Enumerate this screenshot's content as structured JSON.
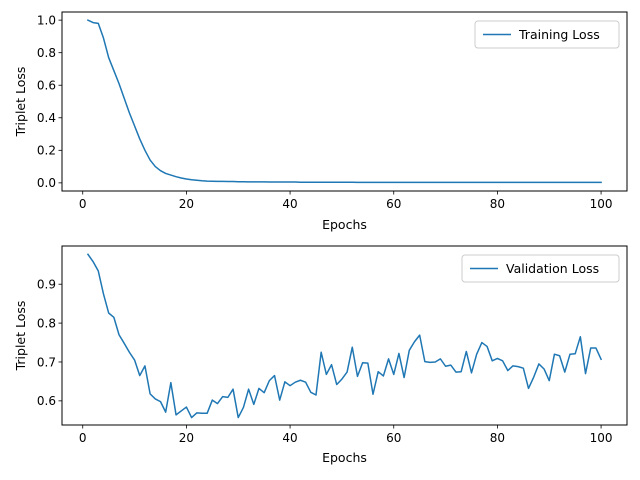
{
  "chart_data": [
    {
      "type": "line",
      "xlabel": "Epochs",
      "ylabel": "Triplet Loss",
      "xlim": [
        -4.0,
        105.0
      ],
      "ylim": [
        -0.05,
        1.05
      ],
      "xticks": [
        0,
        20,
        40,
        60,
        80,
        100
      ],
      "yticks": [
        0.0,
        0.2,
        0.4,
        0.6,
        0.8,
        1.0
      ],
      "ytick_labels": [
        "0.0",
        "0.2",
        "0.4",
        "0.6",
        "0.8",
        "1.0"
      ],
      "legend_position": "upper right",
      "grid": false,
      "series": [
        {
          "name": "Training Loss",
          "color": "#1f77b4",
          "x": [
            1,
            2,
            3,
            4,
            5,
            6,
            7,
            8,
            9,
            10,
            11,
            12,
            13,
            14,
            15,
            16,
            17,
            18,
            19,
            20,
            21,
            22,
            23,
            24,
            25,
            26,
            27,
            28,
            29,
            30,
            31,
            32,
            33,
            34,
            35,
            36,
            37,
            38,
            39,
            40,
            41,
            42,
            43,
            44,
            45,
            46,
            47,
            48,
            49,
            50,
            51,
            52,
            53,
            54,
            55,
            56,
            57,
            58,
            59,
            60,
            61,
            62,
            63,
            64,
            65,
            66,
            67,
            68,
            69,
            70,
            71,
            72,
            73,
            74,
            75,
            76,
            77,
            78,
            79,
            80,
            81,
            82,
            83,
            84,
            85,
            86,
            87,
            88,
            89,
            90,
            91,
            92,
            93,
            94,
            95,
            96,
            97,
            98,
            99,
            100
          ],
          "y": [
            1.0,
            0.985,
            0.98,
            0.89,
            0.77,
            0.69,
            0.61,
            0.52,
            0.43,
            0.35,
            0.27,
            0.2,
            0.14,
            0.1,
            0.075,
            0.058,
            0.048,
            0.038,
            0.03,
            0.024,
            0.019,
            0.016,
            0.013,
            0.011,
            0.01,
            0.009,
            0.009,
            0.008,
            0.008,
            0.007,
            0.007,
            0.006,
            0.006,
            0.006,
            0.006,
            0.005,
            0.005,
            0.005,
            0.005,
            0.005,
            0.005,
            0.004,
            0.004,
            0.004,
            0.004,
            0.004,
            0.004,
            0.004,
            0.004,
            0.004,
            0.004,
            0.004,
            0.003,
            0.003,
            0.003,
            0.003,
            0.003,
            0.003,
            0.003,
            0.003,
            0.003,
            0.003,
            0.003,
            0.003,
            0.003,
            0.003,
            0.003,
            0.003,
            0.003,
            0.003,
            0.003,
            0.003,
            0.003,
            0.003,
            0.003,
            0.003,
            0.003,
            0.003,
            0.003,
            0.003,
            0.003,
            0.003,
            0.003,
            0.003,
            0.003,
            0.003,
            0.003,
            0.003,
            0.003,
            0.003,
            0.003,
            0.003,
            0.003,
            0.003,
            0.003,
            0.003,
            0.003,
            0.003,
            0.003,
            0.003
          ]
        }
      ]
    },
    {
      "type": "line",
      "xlabel": "Epochs",
      "ylabel": "Triplet Loss",
      "xlim": [
        -4.0,
        105.0
      ],
      "ylim": [
        0.5379,
        0.9983
      ],
      "xticks": [
        0,
        20,
        40,
        60,
        80,
        100
      ],
      "yticks": [
        0.6,
        0.7,
        0.8,
        0.9
      ],
      "ytick_labels": [
        "0.6",
        "0.7",
        "0.8",
        "0.9"
      ],
      "legend_position": "upper right",
      "grid": false,
      "series": [
        {
          "name": "Validation Loss",
          "color": "#1f77b4",
          "x": [
            1,
            2,
            3,
            4,
            5,
            6,
            7,
            8,
            9,
            10,
            11,
            12,
            13,
            14,
            15,
            16,
            17,
            18,
            19,
            20,
            21,
            22,
            23,
            24,
            25,
            26,
            27,
            28,
            29,
            30,
            31,
            32,
            33,
            34,
            35,
            36,
            37,
            38,
            39,
            40,
            41,
            42,
            43,
            44,
            45,
            46,
            47,
            48,
            49,
            50,
            51,
            52,
            53,
            54,
            55,
            56,
            57,
            58,
            59,
            60,
            61,
            62,
            63,
            64,
            65,
            66,
            67,
            68,
            69,
            70,
            71,
            72,
            73,
            74,
            75,
            76,
            77,
            78,
            79,
            80,
            81,
            82,
            83,
            84,
            85,
            86,
            87,
            88,
            89,
            90,
            91,
            92,
            93,
            94,
            95,
            96,
            97,
            98,
            99,
            100
          ],
          "y": [
            0.977,
            0.958,
            0.934,
            0.875,
            0.826,
            0.815,
            0.77,
            0.748,
            0.725,
            0.705,
            0.665,
            0.69,
            0.618,
            0.605,
            0.598,
            0.571,
            0.647,
            0.564,
            0.574,
            0.584,
            0.557,
            0.569,
            0.568,
            0.568,
            0.602,
            0.593,
            0.611,
            0.609,
            0.63,
            0.557,
            0.583,
            0.63,
            0.591,
            0.632,
            0.621,
            0.652,
            0.665,
            0.602,
            0.649,
            0.639,
            0.648,
            0.653,
            0.648,
            0.622,
            0.615,
            0.725,
            0.668,
            0.693,
            0.642,
            0.656,
            0.674,
            0.738,
            0.663,
            0.698,
            0.697,
            0.617,
            0.675,
            0.664,
            0.708,
            0.668,
            0.722,
            0.66,
            0.73,
            0.752,
            0.769,
            0.701,
            0.699,
            0.7,
            0.708,
            0.689,
            0.692,
            0.674,
            0.675,
            0.727,
            0.672,
            0.72,
            0.75,
            0.74,
            0.703,
            0.709,
            0.703,
            0.678,
            0.69,
            0.688,
            0.684,
            0.632,
            0.661,
            0.695,
            0.682,
            0.652,
            0.72,
            0.716,
            0.674,
            0.72,
            0.721,
            0.765,
            0.67,
            0.736,
            0.736,
            0.707
          ]
        }
      ]
    }
  ]
}
